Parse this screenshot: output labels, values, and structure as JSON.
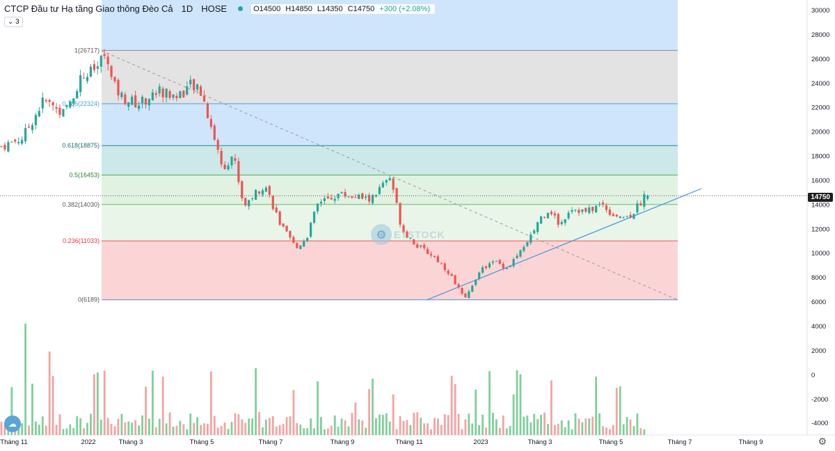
{
  "header": {
    "title": "CTCP Đầu tư Hạ tầng Giao thông Đèo Cả",
    "timeframe": "1D",
    "exchange": "HOSE",
    "open": "O14500",
    "high": "H14850",
    "low": "L14350",
    "close": "C14750",
    "change": "+300 (+2.08%)"
  },
  "indicator_button": "⌄ 3",
  "last_price": "14750",
  "watermark": "ETSTOCK",
  "colors": {
    "up": "#26a69a",
    "down": "#ef5350",
    "fib_blue": "#cfe5fb",
    "fib_gray": "#e3e3e3",
    "fib_teal": "#cde8e8",
    "fib_green": "#e2f2e2",
    "fib_red": "#fbd5d5",
    "trend": "#4a90d9"
  },
  "chart_data": {
    "type": "candlestick",
    "price_axis": {
      "min": 6000,
      "max": 30000,
      "ticks": [
        6000,
        8000,
        10000,
        12000,
        14000,
        16000,
        18000,
        20000,
        22000,
        24000,
        26000,
        28000,
        30000
      ]
    },
    "volume_axis_labels": [
      "-4000",
      "-2000",
      "0",
      "2000",
      "4000"
    ],
    "x_labels": [
      "Tháng 11",
      "2022",
      "Tháng 3",
      "Tháng 5",
      "Tháng 7",
      "Tháng 9",
      "Tháng 11",
      "2023",
      "Tháng 3",
      "Tháng 5",
      "Tháng 7",
      "Tháng 9"
    ],
    "fib_levels": [
      {
        "label": "1(26717)",
        "price": 26717
      },
      {
        "label": "0.786(22324)",
        "price": 22324
      },
      {
        "label": "0.618(18875)",
        "price": 18875
      },
      {
        "label": "0.5(16453)",
        "price": 16453
      },
      {
        "label": "0.382(14030)",
        "price": 14030
      },
      {
        "label": "0.236(11033)",
        "price": 11033
      },
      {
        "label": "0(6189)",
        "price": 6189
      }
    ],
    "price_path": [
      [
        0,
        18800
      ],
      [
        4,
        19500
      ],
      [
        8,
        22600
      ],
      [
        12,
        21500
      ],
      [
        15,
        24400
      ],
      [
        18,
        25200
      ],
      [
        20,
        26717
      ],
      [
        21,
        24000
      ],
      [
        23,
        22800
      ],
      [
        26,
        22300
      ],
      [
        30,
        23400
      ],
      [
        33,
        22900
      ],
      [
        36,
        23800
      ],
      [
        38,
        23200
      ],
      [
        40,
        20200
      ],
      [
        42,
        17000
      ],
      [
        44,
        18200
      ],
      [
        46,
        13900
      ],
      [
        48,
        14900
      ],
      [
        50,
        15700
      ],
      [
        53,
        12300
      ],
      [
        56,
        10400
      ],
      [
        58,
        11400
      ],
      [
        60,
        14000
      ],
      [
        64,
        14900
      ],
      [
        67,
        14700
      ],
      [
        70,
        14400
      ],
      [
        73,
        15900
      ],
      [
        74,
        16000
      ],
      [
        76,
        12000
      ],
      [
        79,
        10600
      ],
      [
        82,
        9800
      ],
      [
        85,
        8400
      ],
      [
        88,
        6189
      ],
      [
        90,
        8000
      ],
      [
        93,
        9500
      ],
      [
        96,
        8800
      ],
      [
        98,
        9900
      ],
      [
        100,
        10900
      ],
      [
        102,
        12800
      ],
      [
        104,
        13700
      ],
      [
        106,
        12300
      ],
      [
        108,
        13800
      ],
      [
        111,
        13400
      ],
      [
        114,
        14100
      ],
      [
        116,
        13200
      ],
      [
        119,
        13000
      ],
      [
        121,
        14000
      ],
      [
        122,
        14750
      ]
    ],
    "last_close": 14750
  }
}
